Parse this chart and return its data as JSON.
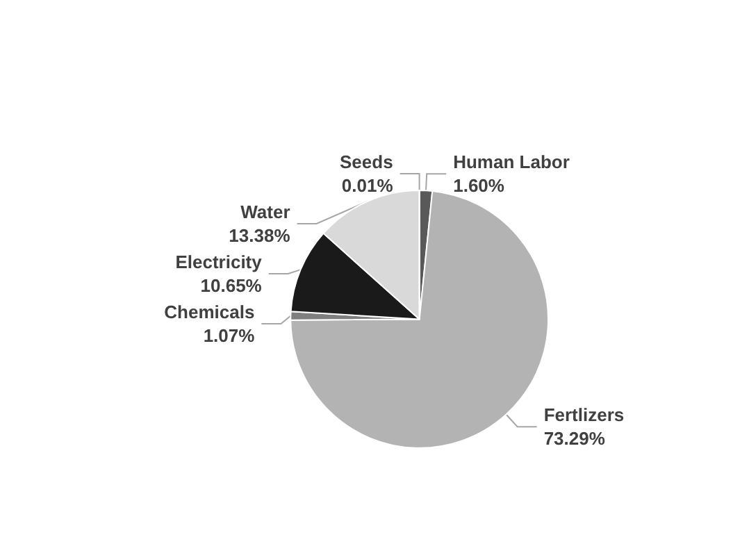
{
  "chart_data": {
    "type": "pie",
    "categories": [
      "Human Labor",
      "Fertlizers",
      "Chemicals",
      "Electricity",
      "Water",
      "Seeds"
    ],
    "values": [
      1.6,
      73.29,
      1.07,
      10.65,
      13.38,
      0.01
    ],
    "value_labels": [
      "1.60%",
      "73.29%",
      "1.07%",
      "10.65%",
      "13.38%",
      "0.01%"
    ],
    "colors": [
      "#595959",
      "#b3b3b3",
      "#7f7f7f",
      "#1a1a1a",
      "#d9d9d9",
      "#a6a6a6"
    ]
  }
}
